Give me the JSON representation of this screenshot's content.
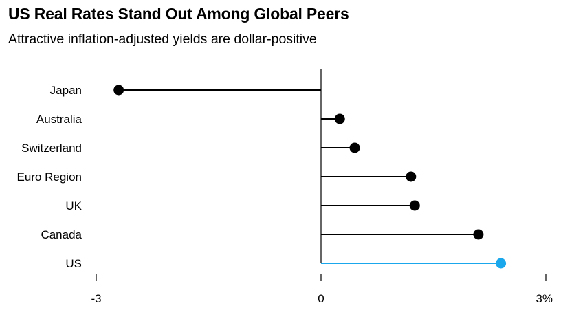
{
  "chart_data": {
    "type": "dot",
    "title": "US Real Rates Stand Out Among Global Peers",
    "subtitle": "Attractive inflation-adjusted yields are dollar-positive",
    "categories": [
      "Japan",
      "Australia",
      "Switzerland",
      "Euro Region",
      "UK",
      "Canada",
      "US"
    ],
    "values": [
      -2.7,
      0.25,
      0.45,
      1.2,
      1.25,
      2.1,
      2.4
    ],
    "highlight": "US",
    "xlim": [
      -3,
      3
    ],
    "x_ticks": [
      {
        "value": -3,
        "label": "-3"
      },
      {
        "value": 0,
        "label": "0"
      },
      {
        "value": 3,
        "label": "3%"
      }
    ],
    "xlabel": "",
    "ylabel": "",
    "grid": false,
    "colors": {
      "default": "#000000",
      "highlight": "#1aa7ec",
      "zero_line": "#000000"
    }
  }
}
